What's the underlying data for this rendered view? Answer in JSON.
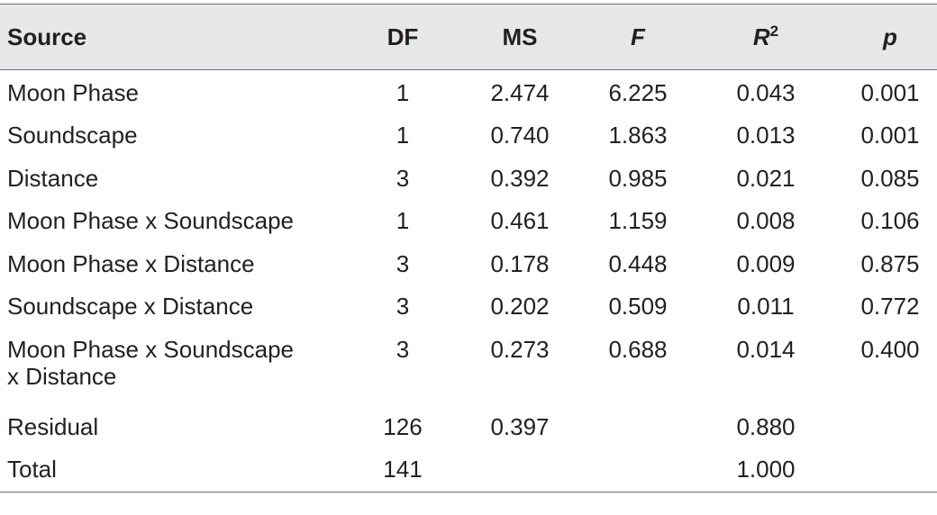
{
  "table": {
    "headers": {
      "source": "Source",
      "df": "DF",
      "ms": "MS",
      "f": "F",
      "r2_base": "R",
      "r2_sup": "2",
      "p": "p"
    },
    "rows": [
      {
        "source": "Moon Phase",
        "df": "1",
        "ms": "2.474",
        "f": "6.225",
        "r2": "0.043",
        "p": "0.001"
      },
      {
        "source": "Soundscape",
        "df": "1",
        "ms": "0.740",
        "f": "1.863",
        "r2": "0.013",
        "p": "0.001"
      },
      {
        "source": "Distance",
        "df": "3",
        "ms": "0.392",
        "f": "0.985",
        "r2": "0.021",
        "p": "0.085"
      },
      {
        "source": "Moon Phase x Soundscape",
        "df": "1",
        "ms": "0.461",
        "f": "1.159",
        "r2": "0.008",
        "p": "0.106"
      },
      {
        "source": "Moon Phase x Distance",
        "df": "3",
        "ms": "0.178",
        "f": "0.448",
        "r2": "0.009",
        "p": "0.875"
      },
      {
        "source": "Soundscape x Distance",
        "df": "3",
        "ms": "0.202",
        "f": "0.509",
        "r2": "0.011",
        "p": "0.772"
      },
      {
        "source_line1": "Moon Phase x Soundscape",
        "source_line2": "x Distance",
        "df": "3",
        "ms": "0.273",
        "f": "0.688",
        "r2": "0.014",
        "p": "0.400"
      },
      {
        "source": "Residual",
        "df": "126",
        "ms": "0.397",
        "f": "",
        "r2": "0.880",
        "p": ""
      },
      {
        "source": "Total",
        "df": "141",
        "ms": "",
        "f": "",
        "r2": "1.000",
        "p": ""
      }
    ]
  }
}
